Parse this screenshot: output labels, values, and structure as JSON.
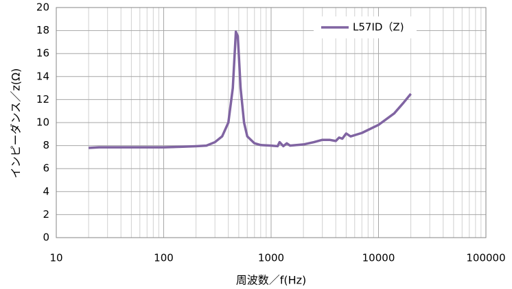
{
  "chart_data": {
    "type": "line",
    "x_label": "周波数／f(Hz)",
    "y_label": "インピーダンス／z(Ω)",
    "log_x": true,
    "grid": true,
    "legend": "upper right",
    "xlim": [
      10,
      100000
    ],
    "xticks": [
      10,
      100,
      1000,
      10000,
      100000
    ],
    "ylim": [
      0,
      20
    ],
    "yticks": [
      0,
      2,
      4,
      6,
      8,
      10,
      12,
      14,
      16,
      18,
      20
    ],
    "x": [
      20,
      25,
      30,
      40,
      50,
      70,
      100,
      150,
      200,
      250,
      300,
      350,
      400,
      440,
      470,
      490,
      520,
      560,
      600,
      700,
      800,
      1000,
      1150,
      1200,
      1300,
      1400,
      1500,
      2000,
      2500,
      3000,
      3500,
      4000,
      4300,
      4600,
      5000,
      5500,
      7000,
      10000,
      14000,
      17000,
      20000
    ],
    "series": [
      {
        "name": "L57ID（Z)",
        "color": "#8064a2",
        "values": [
          7.8,
          7.85,
          7.85,
          7.85,
          7.85,
          7.85,
          7.85,
          7.9,
          7.95,
          8.0,
          8.3,
          8.8,
          10.0,
          13.0,
          17.9,
          17.5,
          13.0,
          10.0,
          8.8,
          8.2,
          8.05,
          8.0,
          7.95,
          8.3,
          7.95,
          8.2,
          8.0,
          8.1,
          8.3,
          8.5,
          8.5,
          8.4,
          8.7,
          8.6,
          9.05,
          8.8,
          9.1,
          9.8,
          10.8,
          11.7,
          12.5
        ]
      }
    ]
  }
}
